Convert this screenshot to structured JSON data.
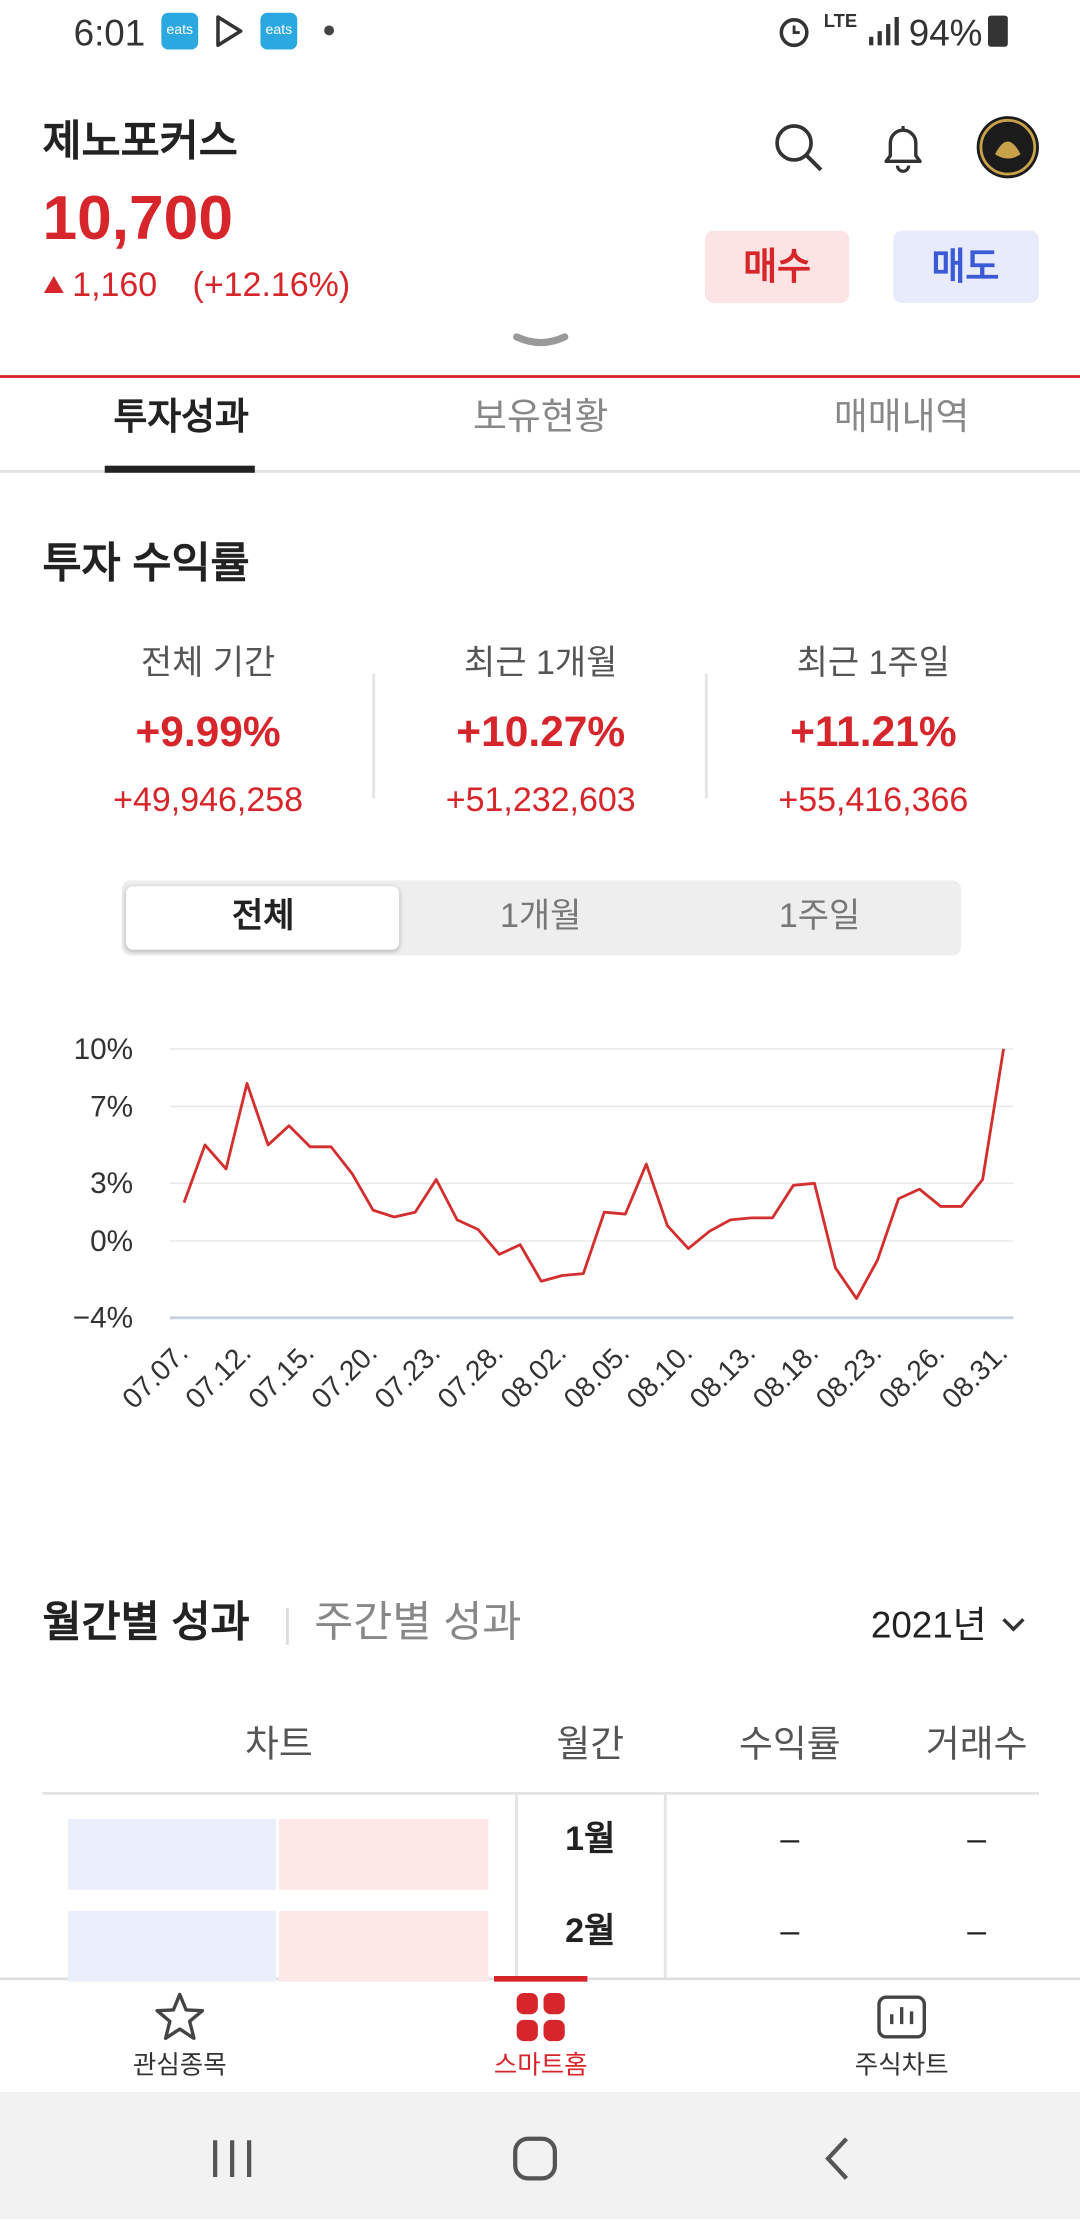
{
  "status_bar": {
    "time": "6:01",
    "notifications": [
      "eats",
      "eats"
    ],
    "network": "LTE",
    "battery": "94%"
  },
  "header": {
    "name": "제노포커스",
    "price": "10,700",
    "change": "1,160",
    "change_pct": "(+12.16%)",
    "buy": "매수",
    "sell": "매도"
  },
  "tabs": [
    "투자성과",
    "보유현황",
    "매매내역"
  ],
  "returns": {
    "title": "투자 수익률",
    "items": [
      {
        "label": "전체 기간",
        "pct": "+9.99%",
        "amount": "+49,946,258"
      },
      {
        "label": "최근 1개월",
        "pct": "+10.27%",
        "amount": "+51,232,603"
      },
      {
        "label": "최근 1주일",
        "pct": "+11.21%",
        "amount": "+55,416,366"
      }
    ]
  },
  "period_toggle": [
    "전체",
    "1개월",
    "1주일"
  ],
  "chart": {
    "type": "line",
    "x": [
      "07.07.",
      null,
      null,
      "07.12.",
      null,
      null,
      "07.15.",
      null,
      null,
      "07.20.",
      null,
      null,
      "07.23.",
      null,
      null,
      "07.28.",
      null,
      null,
      "08.02.",
      null,
      null,
      "08.05.",
      null,
      null,
      "08.10.",
      null,
      null,
      "08.13.",
      null,
      null,
      "08.18.",
      null,
      null,
      "08.23.",
      null,
      null,
      "08.26.",
      null,
      null,
      "08.31."
    ],
    "values": [
      2.0,
      5.0,
      3.75,
      8.2,
      5.0,
      6.0,
      4.9,
      4.9,
      3.5,
      1.6,
      1.25,
      1.5,
      3.2,
      1.1,
      0.6,
      -0.7,
      -0.2,
      -2.1,
      -1.8,
      -1.7,
      1.5,
      1.4,
      4.0,
      0.8,
      -0.4,
      0.5,
      1.1,
      1.2,
      1.2,
      2.9,
      3.0,
      -1.4,
      -3.0,
      -1.0,
      2.2,
      2.7,
      1.8,
      1.8,
      3.2,
      10.0
    ],
    "color": "#d32f2f",
    "ylim": [
      -4,
      10
    ],
    "yticks": [
      {
        "value": 10,
        "label": "10%"
      },
      {
        "value": 7,
        "label": "7%"
      },
      {
        "value": 3,
        "label": "3%"
      },
      {
        "value": 0,
        "label": "0%"
      },
      {
        "value": -4,
        "label": "−4%"
      }
    ],
    "grid": true
  },
  "monthly": {
    "tabs": [
      "월간별 성과",
      "주간별 성과"
    ],
    "year": "2021년",
    "columns": [
      "차트",
      "월간",
      "수익률",
      "거래수"
    ],
    "rows": [
      [
        "1월",
        "–",
        "–"
      ],
      [
        "2월",
        "–",
        "–"
      ]
    ]
  },
  "bottom_nav": [
    "관심종목",
    "스마트홈",
    "주식차트"
  ]
}
